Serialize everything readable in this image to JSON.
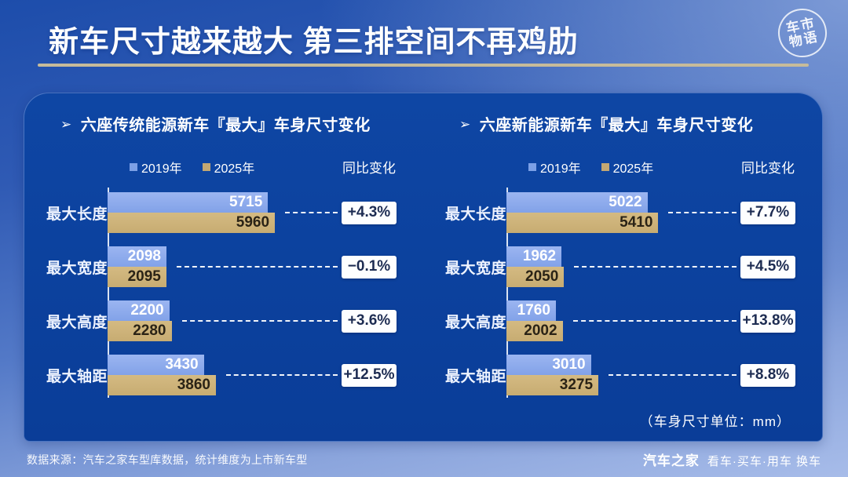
{
  "page": {
    "title": "新车尺寸越来越大 第三排空间不再鸡肋",
    "stamp_lines": [
      "车市",
      "物语"
    ],
    "unit_note": "（车身尺寸单位：mm）",
    "source_note": "数据来源：汽车之家车型库数据，统计维度为上市新车型",
    "footer_brand": "汽车之家",
    "footer_links": "看车·买车·用车 换车"
  },
  "colors": {
    "bar_2019": "#86a6ea",
    "bar_2025": "#cbb077",
    "card_bg": "#0b3f9b",
    "accent_underline": "#c7bb9a",
    "badge_bg": "#fdfeff",
    "badge_text": "#1d2c52"
  },
  "legend": {
    "items": [
      {
        "label": "2019年",
        "color": "#7ca0e6"
      },
      {
        "label": "2025年",
        "color": "#c3a873"
      }
    ],
    "yoy_label": "同比变化"
  },
  "chart_data": [
    {
      "type": "bar",
      "orientation": "horizontal",
      "title": "六座传统能源新车『最大』车身尺寸变化",
      "categories": [
        "最大长度",
        "最大宽度",
        "最大高度",
        "最大轴距"
      ],
      "series": [
        {
          "name": "2019年",
          "values": [
            5715,
            2098,
            2200,
            3430
          ]
        },
        {
          "name": "2025年",
          "values": [
            5960,
            2095,
            2280,
            3860
          ]
        }
      ],
      "yoy_change": [
        "+4.3%",
        "−0.1%",
        "+3.6%",
        "+12.5%"
      ],
      "unit": "mm",
      "xlim": [
        0,
        8000
      ],
      "grid": false,
      "legend_position": "top"
    },
    {
      "type": "bar",
      "orientation": "horizontal",
      "title": "六座新能源新车『最大』车身尺寸变化",
      "categories": [
        "最大长度",
        "最大宽度",
        "最大高度",
        "最大轴距"
      ],
      "series": [
        {
          "name": "2019年",
          "values": [
            5022,
            1962,
            1760,
            3010
          ]
        },
        {
          "name": "2025年",
          "values": [
            5410,
            2050,
            2002,
            3275
          ]
        }
      ],
      "yoy_change": [
        "+7.7%",
        "+4.5%",
        "+13.8%",
        "+8.8%"
      ],
      "unit": "mm",
      "xlim": [
        0,
        8000
      ],
      "grid": false,
      "legend_position": "top"
    }
  ]
}
